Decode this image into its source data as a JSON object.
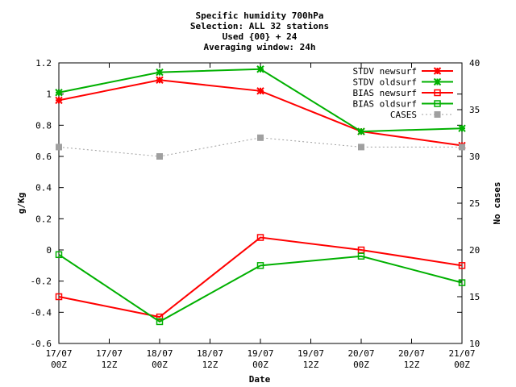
{
  "chart_data": {
    "type": "line",
    "title_lines": [
      "Specific humidity 700hPa",
      "Selection: ALL     32 stations",
      "Used {00} + 24",
      "Averaging window: 24h"
    ],
    "xlabel": "Date",
    "ylabel": "g/Kg",
    "y2label": "No cases",
    "x_ticks": [
      {
        "line1": "17/07",
        "line2": "00Z"
      },
      {
        "line1": "17/07",
        "line2": "12Z"
      },
      {
        "line1": "18/07",
        "line2": "00Z"
      },
      {
        "line1": "18/07",
        "line2": "12Z"
      },
      {
        "line1": "19/07",
        "line2": "00Z"
      },
      {
        "line1": "19/07",
        "line2": "12Z"
      },
      {
        "line1": "20/07",
        "line2": "00Z"
      },
      {
        "line1": "20/07",
        "line2": "12Z"
      },
      {
        "line1": "21/07",
        "line2": "00Z"
      }
    ],
    "x_point_ticks": [
      "17/07 00Z",
      "18/07 00Z",
      "19/07 00Z",
      "20/07 00Z",
      "21/07 00Z"
    ],
    "ylim": [
      -0.6,
      1.2
    ],
    "y_ticks": [
      "-0.6",
      "-0.4",
      "-0.2",
      "0",
      "0.2",
      "0.4",
      "0.6",
      "0.8",
      "1",
      "1.2"
    ],
    "y2lim": [
      10,
      40
    ],
    "y2_ticks": [
      "10",
      "15",
      "20",
      "25",
      "30",
      "35",
      "40"
    ],
    "grid": false,
    "legend_position": "top-right",
    "series": [
      {
        "name": "STDV newsurf",
        "color": "#ff0000",
        "marker": "x-star",
        "axis": "y1",
        "dashed": false,
        "values": [
          0.96,
          1.09,
          1.02,
          0.76,
          0.67
        ]
      },
      {
        "name": "STDV oldsurf",
        "color": "#00b000",
        "marker": "x-star",
        "axis": "y1",
        "dashed": false,
        "values": [
          1.01,
          1.14,
          1.16,
          0.76,
          0.78
        ]
      },
      {
        "name": "BIAS newsurf",
        "color": "#ff0000",
        "marker": "square",
        "axis": "y1",
        "dashed": false,
        "values": [
          -0.3,
          -0.43,
          0.08,
          0.0,
          -0.1
        ]
      },
      {
        "name": "BIAS oldsurf",
        "color": "#00b000",
        "marker": "square",
        "axis": "y1",
        "dashed": false,
        "values": [
          -0.03,
          -0.46,
          -0.1,
          -0.04,
          -0.21
        ]
      },
      {
        "name": "CASES",
        "color": "#a0a0a0",
        "marker": "filled-square",
        "axis": "y2",
        "dashed": true,
        "values": [
          31,
          30,
          32,
          31,
          31
        ]
      }
    ]
  }
}
